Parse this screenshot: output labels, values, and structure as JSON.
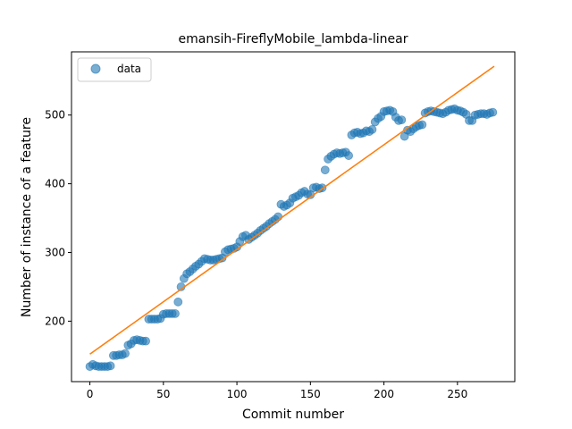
{
  "chart_data": {
    "type": "scatter",
    "title": "emansih-FireflyMobile_lambda-linear",
    "xlabel": "Commit number",
    "ylabel": "Number of instance of a feature",
    "xlim": [
      -12.5,
      289
    ],
    "ylim": [
      112,
      592
    ],
    "xticks": [
      0,
      50,
      100,
      150,
      200,
      250
    ],
    "yticks": [
      200,
      300,
      400,
      500
    ],
    "legend": {
      "position": "top-left",
      "entries": [
        "data"
      ]
    },
    "series": [
      {
        "name": "data",
        "kind": "scatter",
        "color": "#1f77b4",
        "opacity": 0.6,
        "points": [
          [
            0,
            134
          ],
          [
            2,
            137
          ],
          [
            4,
            135
          ],
          [
            6,
            134
          ],
          [
            8,
            134
          ],
          [
            10,
            134
          ],
          [
            12,
            134
          ],
          [
            14,
            135
          ],
          [
            16,
            150
          ],
          [
            18,
            150
          ],
          [
            20,
            151
          ],
          [
            22,
            151
          ],
          [
            24,
            153
          ],
          [
            26,
            165
          ],
          [
            28,
            167
          ],
          [
            30,
            172
          ],
          [
            32,
            173
          ],
          [
            34,
            172
          ],
          [
            36,
            171
          ],
          [
            38,
            171
          ],
          [
            40,
            203
          ],
          [
            42,
            203
          ],
          [
            44,
            203
          ],
          [
            46,
            203
          ],
          [
            48,
            204
          ],
          [
            50,
            210
          ],
          [
            52,
            211
          ],
          [
            54,
            211
          ],
          [
            56,
            211
          ],
          [
            58,
            211
          ],
          [
            60,
            228
          ],
          [
            62,
            250
          ],
          [
            64,
            262
          ],
          [
            66,
            269
          ],
          [
            68,
            272
          ],
          [
            70,
            276
          ],
          [
            72,
            280
          ],
          [
            74,
            283
          ],
          [
            76,
            287
          ],
          [
            78,
            291
          ],
          [
            80,
            290
          ],
          [
            82,
            289
          ],
          [
            84,
            289
          ],
          [
            86,
            290
          ],
          [
            88,
            291
          ],
          [
            90,
            292
          ],
          [
            92,
            301
          ],
          [
            94,
            304
          ],
          [
            96,
            305
          ],
          [
            98,
            306
          ],
          [
            100,
            308
          ],
          [
            102,
            316
          ],
          [
            104,
            323
          ],
          [
            106,
            325
          ],
          [
            108,
            319
          ],
          [
            110,
            322
          ],
          [
            112,
            325
          ],
          [
            114,
            328
          ],
          [
            116,
            332
          ],
          [
            118,
            335
          ],
          [
            120,
            338
          ],
          [
            122,
            342
          ],
          [
            124,
            345
          ],
          [
            126,
            348
          ],
          [
            128,
            352
          ],
          [
            130,
            370
          ],
          [
            132,
            367
          ],
          [
            134,
            369
          ],
          [
            136,
            372
          ],
          [
            138,
            379
          ],
          [
            140,
            381
          ],
          [
            142,
            383
          ],
          [
            144,
            387
          ],
          [
            146,
            389
          ],
          [
            148,
            385
          ],
          [
            150,
            384
          ],
          [
            152,
            394
          ],
          [
            154,
            395
          ],
          [
            156,
            393
          ],
          [
            158,
            394
          ],
          [
            160,
            420
          ],
          [
            162,
            436
          ],
          [
            164,
            440
          ],
          [
            166,
            443
          ],
          [
            168,
            445
          ],
          [
            170,
            444
          ],
          [
            172,
            445
          ],
          [
            174,
            446
          ],
          [
            176,
            441
          ],
          [
            178,
            471
          ],
          [
            180,
            474
          ],
          [
            182,
            475
          ],
          [
            184,
            473
          ],
          [
            186,
            474
          ],
          [
            188,
            477
          ],
          [
            190,
            476
          ],
          [
            192,
            479
          ],
          [
            194,
            490
          ],
          [
            196,
            495
          ],
          [
            198,
            498
          ],
          [
            200,
            505
          ],
          [
            202,
            506
          ],
          [
            204,
            507
          ],
          [
            206,
            505
          ],
          [
            208,
            497
          ],
          [
            210,
            492
          ],
          [
            212,
            493
          ],
          [
            214,
            469
          ],
          [
            216,
            478
          ],
          [
            218,
            476
          ],
          [
            220,
            480
          ],
          [
            222,
            483
          ],
          [
            224,
            485
          ],
          [
            226,
            486
          ],
          [
            228,
            503
          ],
          [
            230,
            505
          ],
          [
            232,
            506
          ],
          [
            234,
            505
          ],
          [
            236,
            504
          ],
          [
            238,
            503
          ],
          [
            240,
            502
          ],
          [
            242,
            504
          ],
          [
            244,
            507
          ],
          [
            246,
            508
          ],
          [
            248,
            509
          ],
          [
            250,
            507
          ],
          [
            252,
            506
          ],
          [
            254,
            504
          ],
          [
            256,
            501
          ],
          [
            258,
            492
          ],
          [
            260,
            492
          ],
          [
            262,
            500
          ],
          [
            264,
            501
          ],
          [
            266,
            502
          ],
          [
            268,
            502
          ],
          [
            270,
            501
          ],
          [
            272,
            503
          ],
          [
            274,
            504
          ]
        ]
      },
      {
        "name": "",
        "kind": "line",
        "color": "#ff7f0e",
        "points": [
          [
            0,
            152
          ],
          [
            275,
            571
          ]
        ]
      }
    ]
  }
}
